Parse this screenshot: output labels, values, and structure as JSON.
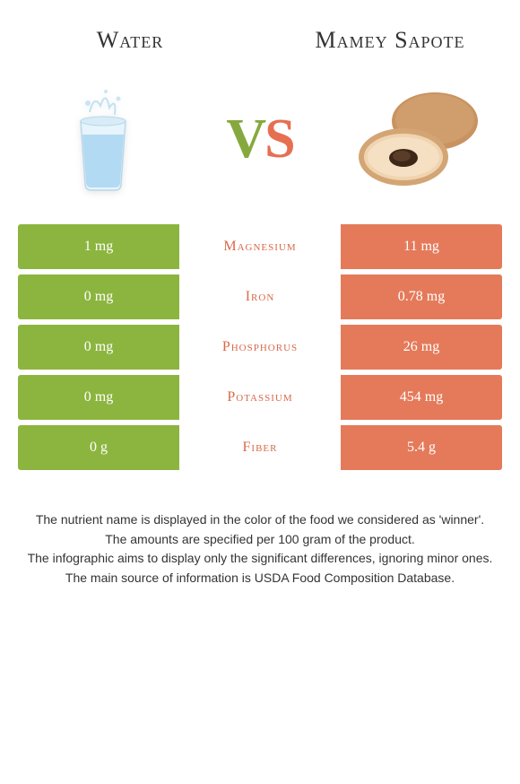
{
  "colors": {
    "green": "#8cb53f",
    "orange": "#e47a5a",
    "orange_text": "#d9694a",
    "white": "#ffffff",
    "text": "#333333"
  },
  "header": {
    "left_title": "Water",
    "right_title": "Mamey Sapote"
  },
  "vs": {
    "v": "V",
    "s": "S"
  },
  "rows": [
    {
      "left": "1 mg",
      "label": "Magnesium",
      "right": "11 mg",
      "winner": "right"
    },
    {
      "left": "0 mg",
      "label": "Iron",
      "right": "0.78 mg",
      "winner": "right"
    },
    {
      "left": "0 mg",
      "label": "Phosphorus",
      "right": "26 mg",
      "winner": "right"
    },
    {
      "left": "0 mg",
      "label": "Potassium",
      "right": "454 mg",
      "winner": "right"
    },
    {
      "left": "0 g",
      "label": "Fiber",
      "right": "5.4 g",
      "winner": "right"
    }
  ],
  "footer": {
    "p1": "The nutrient name is displayed in the color of the food we considered as 'winner'.",
    "p2": "The amounts are specified per 100 gram of the product.",
    "p3": "The infographic aims to display only the significant differences, ignoring minor ones.",
    "p4": "The main source of information is USDA Food Composition Database."
  }
}
